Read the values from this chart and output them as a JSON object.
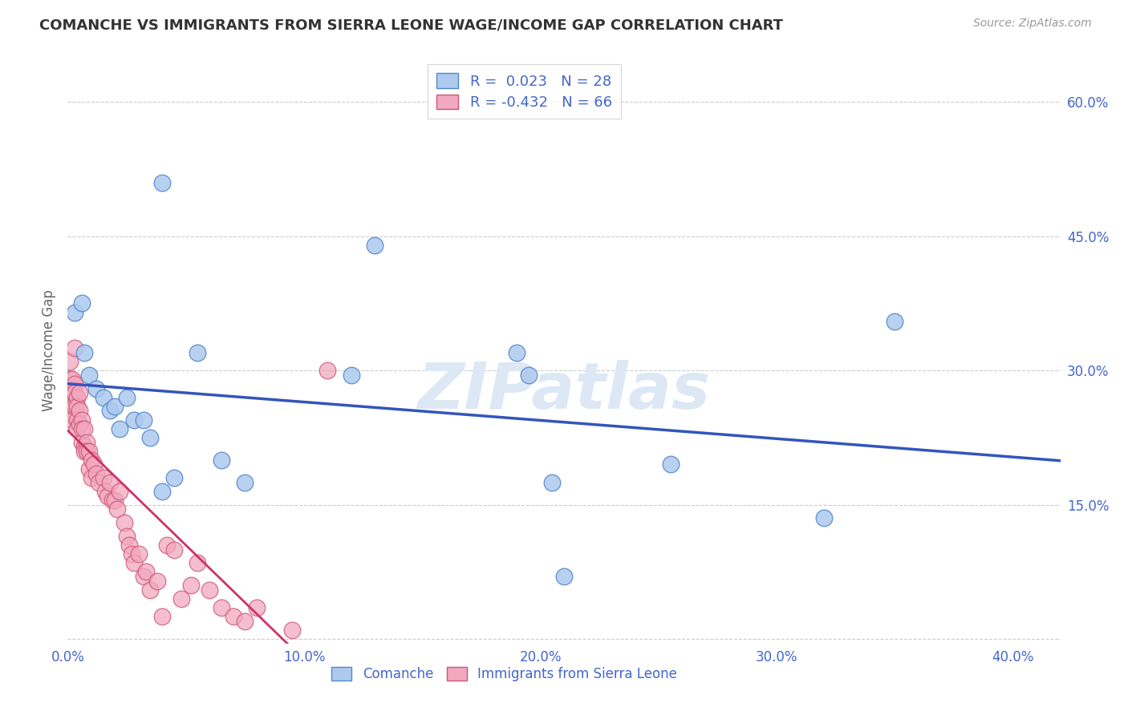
{
  "title": "COMANCHE VS IMMIGRANTS FROM SIERRA LEONE WAGE/INCOME GAP CORRELATION CHART",
  "source": "Source: ZipAtlas.com",
  "ylabel": "Wage/Income Gap",
  "xlim": [
    0.0,
    0.42
  ],
  "ylim": [
    -0.005,
    0.65
  ],
  "xticks": [
    0.0,
    0.1,
    0.2,
    0.3,
    0.4
  ],
  "yticks": [
    0.0,
    0.15,
    0.3,
    0.45,
    0.6
  ],
  "xtick_labels": [
    "0.0%",
    "10.0%",
    "20.0%",
    "30.0%",
    "40.0%"
  ],
  "ytick_labels_right": [
    "",
    "15.0%",
    "30.0%",
    "45.0%",
    "60.0%"
  ],
  "comanche_color": "#adc9ee",
  "sierra_leone_color": "#f2a8bf",
  "comanche_edge": "#5588cc",
  "sierra_leone_edge": "#cc5577",
  "trend_blue": "#3355bb",
  "trend_pink": "#cc3366",
  "R_comanche": "0.023",
  "N_comanche": "28",
  "R_sierra": "-0.432",
  "N_sierra": "66",
  "legend_label_1": "Comanche",
  "legend_label_2": "Immigrants from Sierra Leone",
  "watermark": "ZIPatlas",
  "background_color": "#ffffff",
  "axis_color": "#4466cc",
  "comanche_x": [
    0.003,
    0.006,
    0.007,
    0.009,
    0.012,
    0.015,
    0.018,
    0.02,
    0.022,
    0.025,
    0.028,
    0.032,
    0.035,
    0.04,
    0.045,
    0.055,
    0.065,
    0.075,
    0.12,
    0.13,
    0.19,
    0.195,
    0.205,
    0.21,
    0.255,
    0.32,
    0.35,
    0.04
  ],
  "comanche_y": [
    0.365,
    0.375,
    0.32,
    0.295,
    0.28,
    0.27,
    0.255,
    0.26,
    0.235,
    0.27,
    0.245,
    0.245,
    0.225,
    0.51,
    0.18,
    0.32,
    0.2,
    0.175,
    0.295,
    0.44,
    0.32,
    0.295,
    0.175,
    0.07,
    0.195,
    0.135,
    0.355,
    0.165
  ],
  "sierra_x": [
    0.001,
    0.001,
    0.001,
    0.001,
    0.002,
    0.002,
    0.002,
    0.002,
    0.002,
    0.003,
    0.003,
    0.003,
    0.003,
    0.004,
    0.004,
    0.004,
    0.004,
    0.005,
    0.005,
    0.005,
    0.006,
    0.006,
    0.006,
    0.007,
    0.007,
    0.007,
    0.008,
    0.008,
    0.009,
    0.009,
    0.01,
    0.01,
    0.011,
    0.012,
    0.013,
    0.015,
    0.016,
    0.017,
    0.018,
    0.019,
    0.02,
    0.021,
    0.022,
    0.024,
    0.025,
    0.026,
    0.027,
    0.028,
    0.03,
    0.032,
    0.033,
    0.035,
    0.038,
    0.04,
    0.042,
    0.045,
    0.048,
    0.052,
    0.055,
    0.06,
    0.065,
    0.07,
    0.075,
    0.08,
    0.095,
    0.11
  ],
  "sierra_y": [
    0.29,
    0.28,
    0.27,
    0.31,
    0.29,
    0.275,
    0.26,
    0.25,
    0.245,
    0.325,
    0.285,
    0.275,
    0.26,
    0.27,
    0.26,
    0.245,
    0.235,
    0.275,
    0.255,
    0.24,
    0.245,
    0.235,
    0.22,
    0.235,
    0.215,
    0.21,
    0.22,
    0.21,
    0.21,
    0.19,
    0.2,
    0.18,
    0.195,
    0.185,
    0.175,
    0.18,
    0.165,
    0.16,
    0.175,
    0.155,
    0.155,
    0.145,
    0.165,
    0.13,
    0.115,
    0.105,
    0.095,
    0.085,
    0.095,
    0.07,
    0.075,
    0.055,
    0.065,
    0.025,
    0.105,
    0.1,
    0.045,
    0.06,
    0.085,
    0.055,
    0.035,
    0.025,
    0.02,
    0.035,
    0.01,
    0.3
  ]
}
